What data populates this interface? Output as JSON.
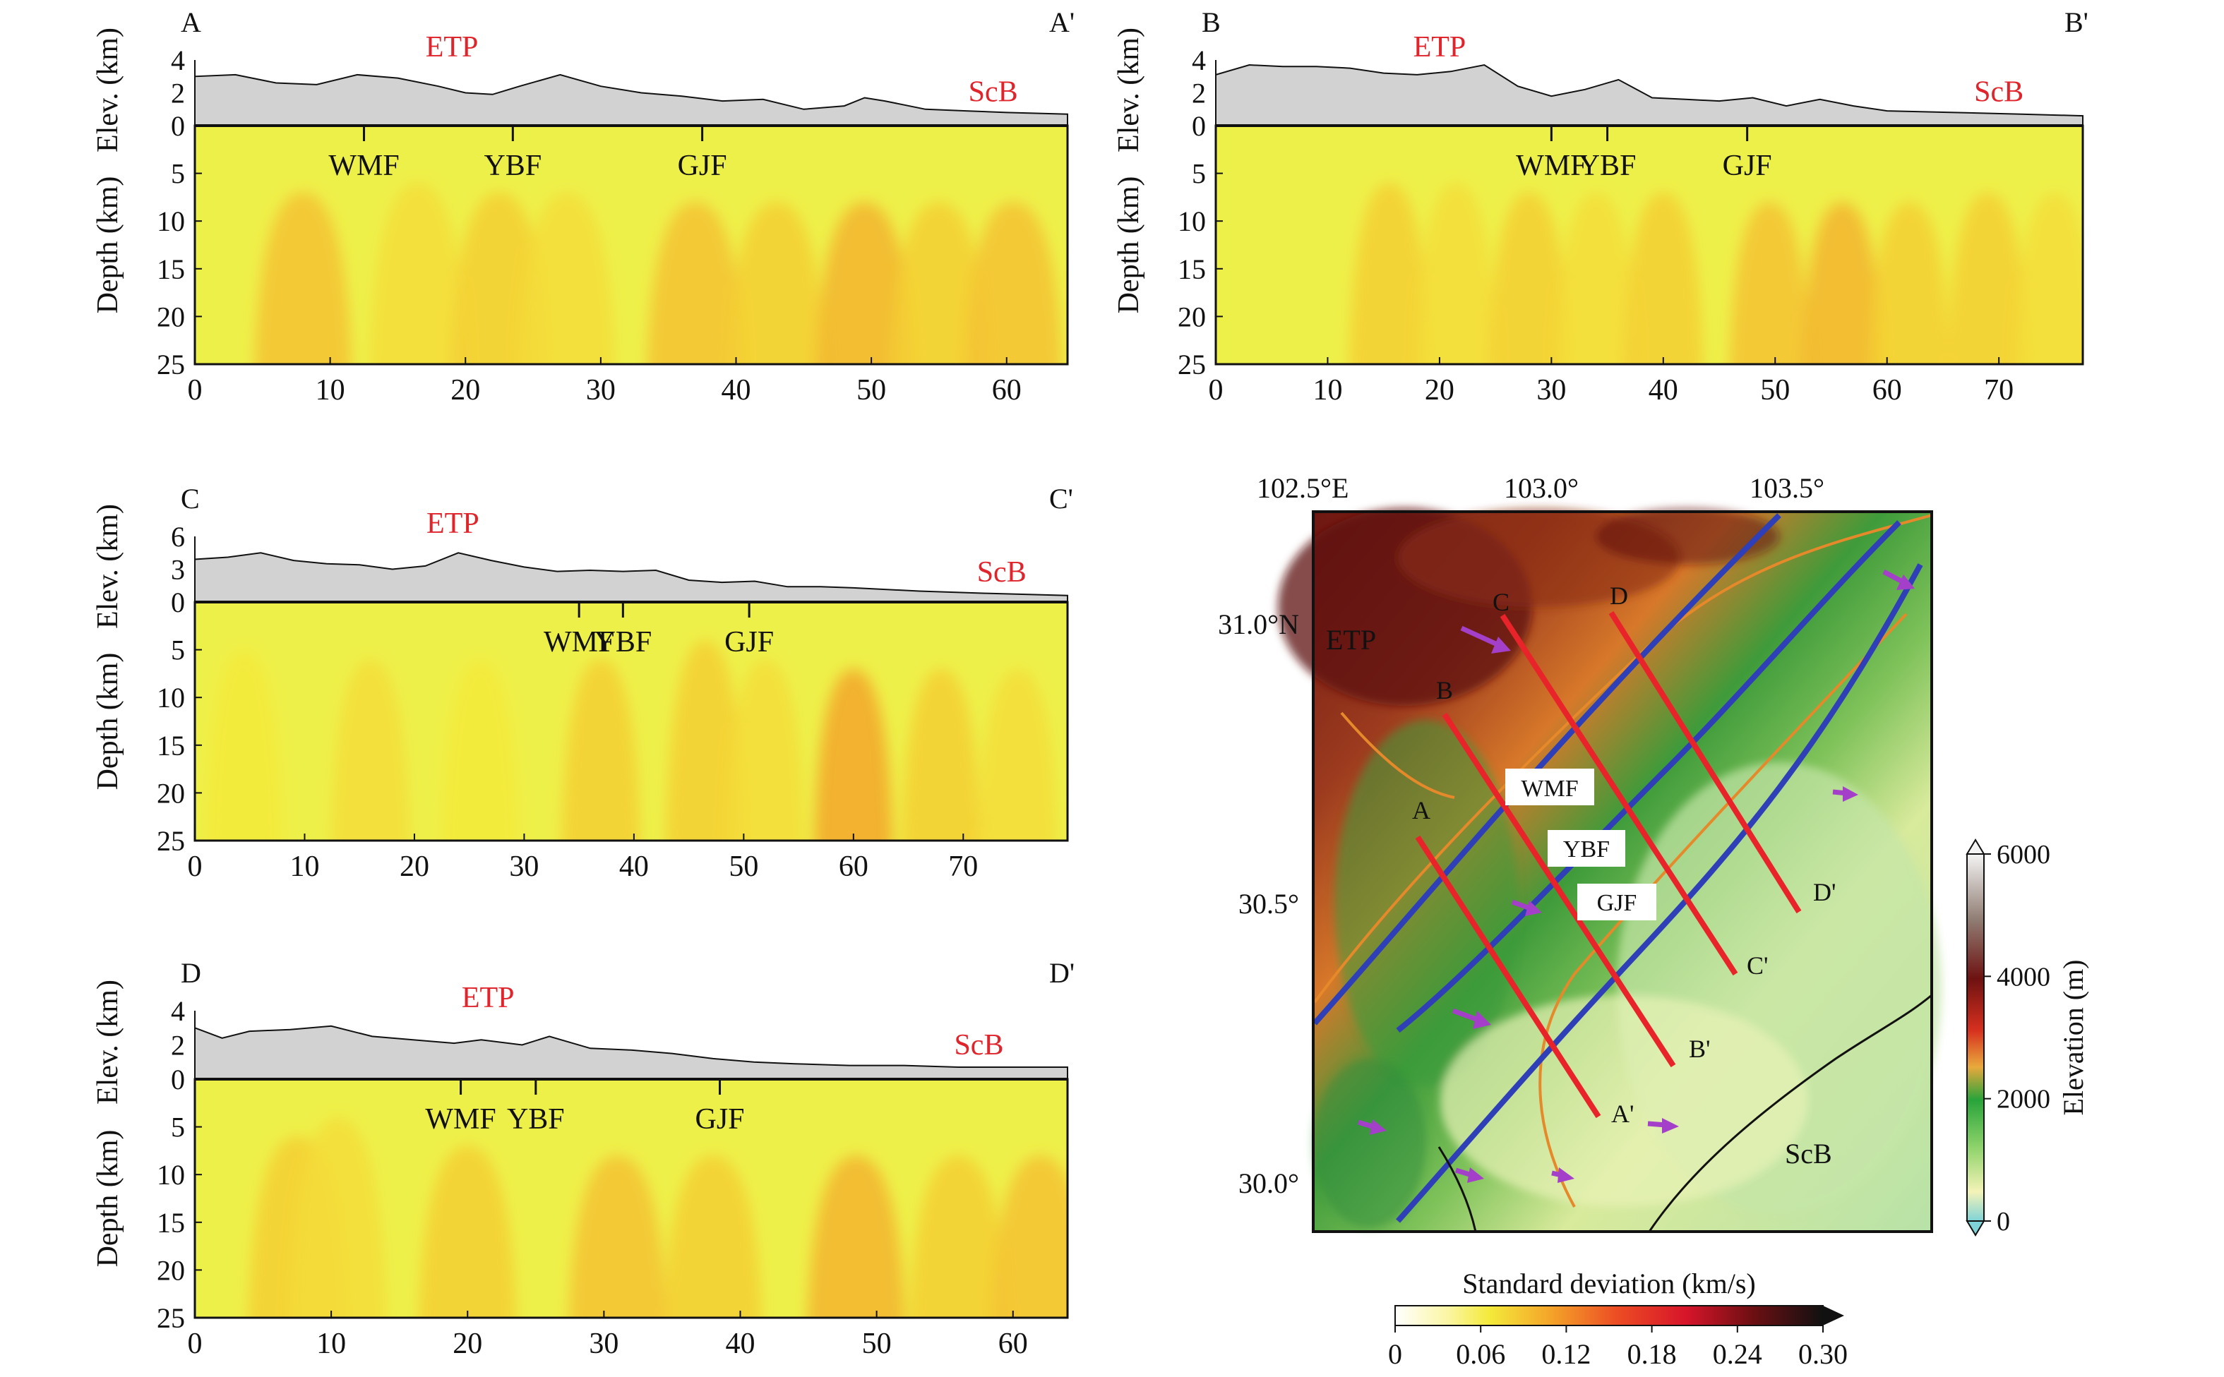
{
  "colors": {
    "etp_label": "#e0242b",
    "scb_label": "#e0242b",
    "profile_line": "#e8232a",
    "fault_line": "#2e3fb8",
    "river_line": "#e5892a",
    "arrow": "#a43fc9",
    "topo_fill": "#d2d2d2",
    "section_base": "#eef04a",
    "section_hot": "#f39a26"
  },
  "labels": {
    "depth_axis": "Depth (km)",
    "elev_axis": "Elev. (km)",
    "etp": "ETP",
    "scb": "ScB",
    "wmf": "WMF",
    "ybf": "YBF",
    "gjf": "GJF"
  },
  "chart_data": [
    {
      "type": "heatmap",
      "id": "A",
      "start_label": "A",
      "end_label": "A'",
      "xlim": [
        0,
        64.5
      ],
      "xticks": [
        0,
        10,
        20,
        30,
        40,
        50,
        60
      ],
      "ylabel": "Depth (km)",
      "ylim": [
        0,
        25
      ],
      "yticks": [
        0,
        5,
        10,
        15,
        20,
        25
      ],
      "elev_label": "Elev. (km)",
      "elev_ylim": [
        0,
        4
      ],
      "elev_ticks": [
        0,
        2,
        4
      ],
      "elevation": {
        "x": [
          0,
          3,
          6,
          9,
          12,
          15,
          18,
          20,
          22,
          24,
          27,
          30,
          33,
          36,
          39,
          42,
          45,
          48,
          49.5,
          51,
          54,
          57,
          60,
          64.5
        ],
        "y": [
          3.0,
          3.1,
          2.6,
          2.5,
          3.1,
          2.9,
          2.4,
          2.0,
          1.9,
          2.4,
          3.1,
          2.4,
          2.0,
          1.8,
          1.5,
          1.6,
          1.0,
          1.2,
          1.7,
          1.5,
          1.0,
          0.9,
          0.8,
          0.7
        ]
      },
      "faults": [
        {
          "label": "WMF",
          "x": 12.5
        },
        {
          "label": "YBF",
          "x": 23.5
        },
        {
          "label": "GJF",
          "x": 37.5
        }
      ],
      "etp_x": 19,
      "scb_x": 59,
      "anomalies": [
        {
          "x": 8,
          "z": 21,
          "value": 0.09
        },
        {
          "x": 16.5,
          "z": 20,
          "value": 0.07
        },
        {
          "x": 22.5,
          "z": 21,
          "value": 0.08
        },
        {
          "x": 27.5,
          "z": 21,
          "value": 0.07
        },
        {
          "x": 37,
          "z": 22,
          "value": 0.09
        },
        {
          "x": 43,
          "z": 22,
          "value": 0.08
        },
        {
          "x": 49.5,
          "z": 22,
          "value": 0.1
        },
        {
          "x": 55,
          "z": 22,
          "value": 0.08
        },
        {
          "x": 60.5,
          "z": 22,
          "value": 0.09
        }
      ]
    },
    {
      "type": "heatmap",
      "id": "B",
      "start_label": "B",
      "end_label": "B'",
      "xlim": [
        0,
        77.5
      ],
      "xticks": [
        0,
        10,
        20,
        30,
        40,
        50,
        60,
        70
      ],
      "ylabel": "Depth (km)",
      "ylim": [
        0,
        25
      ],
      "yticks": [
        0,
        5,
        10,
        15,
        20,
        25
      ],
      "elev_label": "Elev. (km)",
      "elev_ylim": [
        0,
        4
      ],
      "elev_ticks": [
        0,
        2,
        4
      ],
      "elevation": {
        "x": [
          0,
          3,
          6,
          9,
          12,
          15,
          18,
          21,
          24,
          27,
          30,
          33,
          36,
          39,
          42,
          45,
          48,
          51,
          54,
          57,
          60,
          66,
          72,
          77.5
        ],
        "y": [
          3.1,
          3.7,
          3.6,
          3.6,
          3.5,
          3.2,
          3.1,
          3.3,
          3.7,
          2.4,
          1.8,
          2.2,
          2.8,
          1.7,
          1.6,
          1.5,
          1.7,
          1.2,
          1.6,
          1.2,
          0.9,
          0.8,
          0.7,
          0.6
        ]
      },
      "faults": [
        {
          "label": "WMF",
          "x": 30
        },
        {
          "label": "YBF",
          "x": 35
        },
        {
          "label": "GJF",
          "x": 47.5
        }
      ],
      "etp_x": 20,
      "scb_x": 70,
      "anomalies": [
        {
          "x": 15.5,
          "z": 20,
          "value": 0.08
        },
        {
          "x": 21.5,
          "z": 20,
          "value": 0.07
        },
        {
          "x": 28,
          "z": 21,
          "value": 0.08
        },
        {
          "x": 34,
          "z": 21,
          "value": 0.07
        },
        {
          "x": 40,
          "z": 21,
          "value": 0.08
        },
        {
          "x": 49.5,
          "z": 22,
          "value": 0.09
        },
        {
          "x": 56,
          "z": 22,
          "value": 0.1
        },
        {
          "x": 62,
          "z": 22,
          "value": 0.08
        },
        {
          "x": 69,
          "z": 21,
          "value": 0.08
        },
        {
          "x": 75,
          "z": 21,
          "value": 0.07
        }
      ]
    },
    {
      "type": "heatmap",
      "id": "C",
      "start_label": "C",
      "end_label": "C'",
      "xlim": [
        0,
        79.5
      ],
      "xticks": [
        0,
        10,
        20,
        30,
        40,
        50,
        60,
        70
      ],
      "ylabel": "Depth (km)",
      "ylim": [
        0,
        25
      ],
      "yticks": [
        0,
        5,
        10,
        15,
        20,
        25
      ],
      "elev_label": "Elev. (km)",
      "elev_ylim": [
        0,
        6
      ],
      "elev_ticks": [
        0,
        3,
        6
      ],
      "elevation": {
        "x": [
          0,
          3,
          6,
          9,
          12,
          15,
          18,
          21,
          24,
          27,
          30,
          33,
          36,
          39,
          42,
          45,
          48,
          51,
          54,
          57,
          60,
          66,
          72,
          79.5
        ],
        "y": [
          3.9,
          4.1,
          4.5,
          3.8,
          3.5,
          3.4,
          3.0,
          3.3,
          4.5,
          3.8,
          3.2,
          2.8,
          2.9,
          2.8,
          2.9,
          2.0,
          1.8,
          1.9,
          1.4,
          1.4,
          1.3,
          1.0,
          0.8,
          0.6
        ]
      },
      "faults": [
        {
          "label": "WMF",
          "x": 35
        },
        {
          "label": "YBF",
          "x": 39
        },
        {
          "label": "GJF",
          "x": 50.5
        }
      ],
      "etp_x": 23.5,
      "scb_x": 73.5,
      "anomalies": [
        {
          "x": 4.5,
          "z": 19,
          "value": 0.06
        },
        {
          "x": 16,
          "z": 20,
          "value": 0.07
        },
        {
          "x": 26,
          "z": 20,
          "value": 0.06
        },
        {
          "x": 37,
          "z": 20,
          "value": 0.08
        },
        {
          "x": 46.5,
          "z": 16,
          "value": 0.08
        },
        {
          "x": 52,
          "z": 20,
          "value": 0.07
        },
        {
          "x": 60,
          "z": 21,
          "value": 0.11
        },
        {
          "x": 68,
          "z": 21,
          "value": 0.08
        },
        {
          "x": 75,
          "z": 21,
          "value": 0.07
        }
      ]
    },
    {
      "type": "heatmap",
      "id": "D",
      "start_label": "D",
      "end_label": "D'",
      "xlim": [
        0,
        64
      ],
      "xticks": [
        0,
        10,
        20,
        30,
        40,
        50,
        60
      ],
      "ylabel": "Depth (km)",
      "ylim": [
        0,
        25
      ],
      "yticks": [
        0,
        5,
        10,
        15,
        20,
        25
      ],
      "elev_label": "Elev. (km)",
      "elev_ylim": [
        0,
        4
      ],
      "elev_ticks": [
        0,
        2,
        4
      ],
      "elevation": {
        "x": [
          0,
          2,
          4,
          7,
          10,
          13,
          16,
          19,
          21,
          24,
          26,
          29,
          32,
          35,
          38,
          41,
          44,
          48,
          52,
          56,
          60,
          64
        ],
        "y": [
          3.0,
          2.4,
          2.8,
          2.9,
          3.1,
          2.5,
          2.3,
          2.1,
          2.3,
          2.0,
          2.5,
          1.8,
          1.7,
          1.5,
          1.2,
          1.0,
          0.9,
          0.8,
          0.8,
          0.7,
          0.7,
          0.7
        ]
      },
      "faults": [
        {
          "label": "WMF",
          "x": 19.5
        },
        {
          "label": "YBF",
          "x": 25
        },
        {
          "label": "GJF",
          "x": 38.5
        }
      ],
      "etp_x": 21.5,
      "scb_x": 57.5,
      "anomalies": [
        {
          "x": 7.5,
          "z": 20,
          "value": 0.08
        },
        {
          "x": 10.5,
          "z": 18,
          "value": 0.07
        },
        {
          "x": 20,
          "z": 21,
          "value": 0.08
        },
        {
          "x": 31,
          "z": 22,
          "value": 0.09
        },
        {
          "x": 38,
          "z": 22,
          "value": 0.08
        },
        {
          "x": 48.5,
          "z": 22,
          "value": 0.1
        },
        {
          "x": 56,
          "z": 22,
          "value": 0.08
        },
        {
          "x": 62,
          "z": 22,
          "value": 0.09
        }
      ]
    }
  ],
  "map": {
    "lon_ticks": [
      "102.5°E",
      "103.0°",
      "103.5°"
    ],
    "lat_ticks": [
      "31.0°N",
      "30.5°",
      "30.0°"
    ],
    "lon_range": [
      102.5,
      103.8
    ],
    "lat_range": [
      29.9,
      31.2
    ],
    "etp_label": "ETP",
    "scb_label": "ScB",
    "fault_labels": [
      "WMF",
      "YBF",
      "GJF"
    ],
    "profiles": [
      {
        "start": "A",
        "end": "A'"
      },
      {
        "start": "B",
        "end": "B'"
      },
      {
        "start": "C",
        "end": "C'"
      },
      {
        "start": "D",
        "end": "D'"
      }
    ],
    "elevation_colorbar": {
      "label": "Elevation (m)",
      "ticks": [
        "0",
        "2000",
        "4000",
        "6000"
      ],
      "range": [
        0,
        6000
      ]
    }
  },
  "std_colorbar": {
    "label": "Standard deviation (km/s)",
    "ticks": [
      "0",
      "0.06",
      "0.12",
      "0.18",
      "0.24",
      "0.30"
    ],
    "range": [
      0,
      0.3
    ]
  }
}
